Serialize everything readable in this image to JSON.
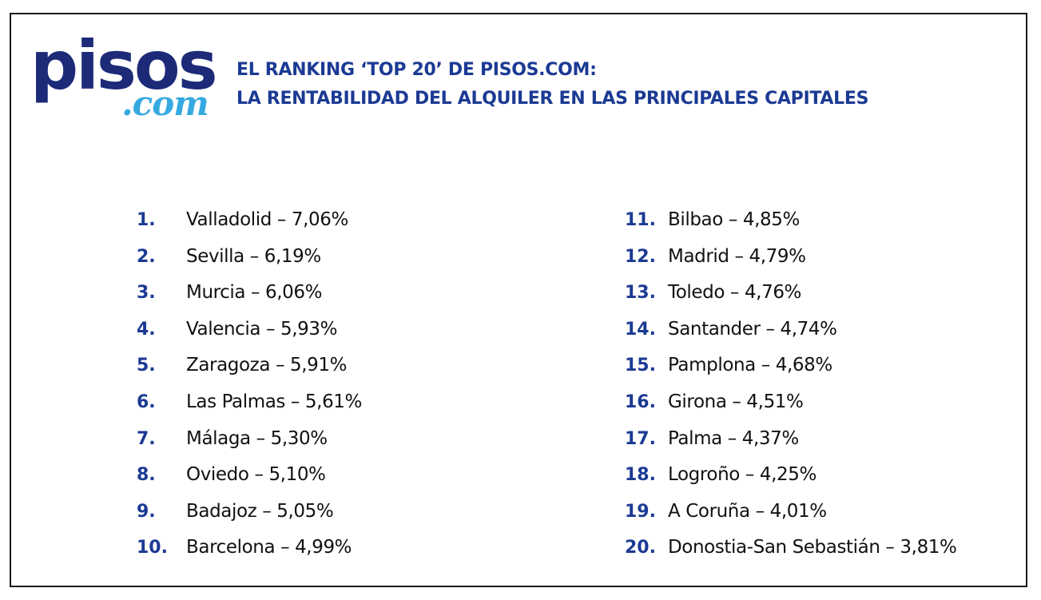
{
  "logo": {
    "main": "pisos",
    "sub": ".com"
  },
  "header": {
    "line1": "EL RANKING ‘TOP 20’ DE PISOS.COM:",
    "line2": "LA RENTABILIDAD DEL ALQUILER EN LAS PRINCIPALES CAPITALES"
  },
  "ranking": {
    "left": [
      {
        "rank": "1.",
        "text": "Valladolid – 7,06%"
      },
      {
        "rank": "2.",
        "text": "Sevilla – 6,19%"
      },
      {
        "rank": "3.",
        "text": "Murcia – 6,06%"
      },
      {
        "rank": "4.",
        "text": "Valencia – 5,93%"
      },
      {
        "rank": "5.",
        "text": "Zaragoza – 5,91%"
      },
      {
        "rank": "6.",
        "text": "Las Palmas – 5,61%"
      },
      {
        "rank": "7.",
        "text": "Málaga – 5,30%"
      },
      {
        "rank": "8.",
        "text": "Oviedo – 5,10%"
      },
      {
        "rank": "9.",
        "text": "Badajoz – 5,05%"
      },
      {
        "rank": "10.",
        "text": "Barcelona – 4,99%"
      }
    ],
    "right": [
      {
        "rank": "11.",
        "text": "Bilbao – 4,85%"
      },
      {
        "rank": "12.",
        "text": "Madrid – 4,79%"
      },
      {
        "rank": "13.",
        "text": "Toledo – 4,76%"
      },
      {
        "rank": "14.",
        "text": "Santander – 4,74%"
      },
      {
        "rank": "15.",
        "text": "Pamplona – 4,68%"
      },
      {
        "rank": "16.",
        "text": "Girona – 4,51%"
      },
      {
        "rank": "17.",
        "text": "Palma – 4,37%"
      },
      {
        "rank": "18.",
        "text": "Logroño – 4,25%"
      },
      {
        "rank": "19.",
        "text": "A Coruña – 4,01%"
      },
      {
        "rank": "20.",
        "text": "Donostia-San Sebastián – 3,81%"
      }
    ]
  },
  "colors": {
    "brand_navy": "#1c2a78",
    "brand_light_blue": "#36a9e1",
    "heading_blue": "#1b3a93",
    "text": "#111111",
    "border": "#1a1a1a"
  }
}
